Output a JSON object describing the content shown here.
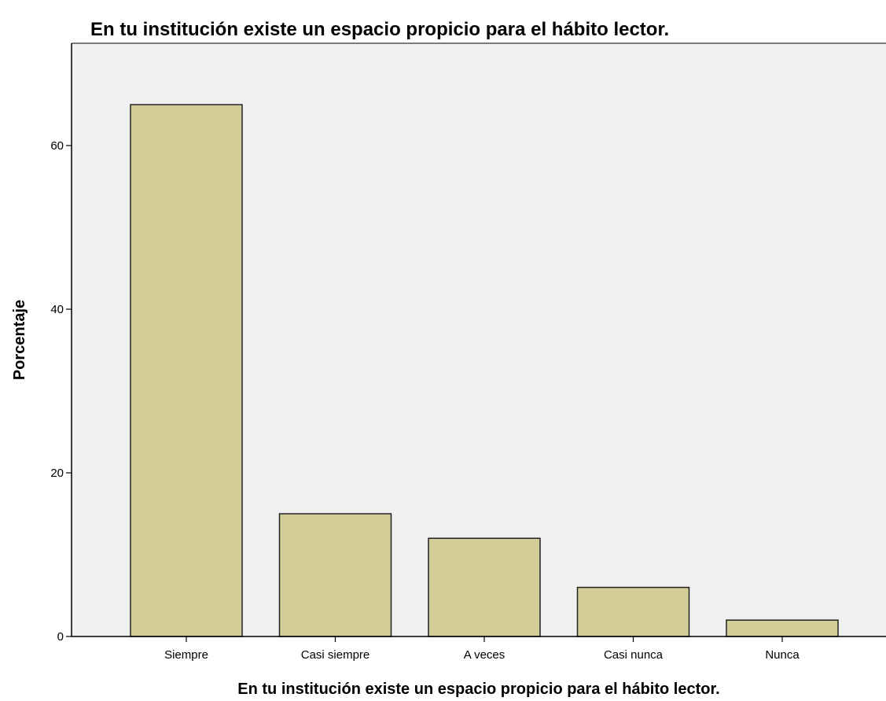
{
  "chart_data": {
    "type": "bar",
    "title": "En tu institución existe un espacio propicio para el hábito lector.",
    "xlabel": "En tu institución existe un espacio propicio para el hábito lector.",
    "ylabel": "Porcentaje",
    "categories": [
      "Siempre",
      "Casi siempre",
      "A veces",
      "Casi nunca",
      "Nunca"
    ],
    "values": [
      65,
      15,
      12,
      6,
      2
    ],
    "ylim": [
      0,
      72.5
    ],
    "yticks": [
      0,
      20,
      40,
      60
    ],
    "grid": false,
    "legend": "none",
    "colors": {
      "bar_fill": "#d3ce97",
      "bar_stroke": "#222222",
      "plot_background": "#f0f0f0",
      "axis": "#000000"
    }
  }
}
